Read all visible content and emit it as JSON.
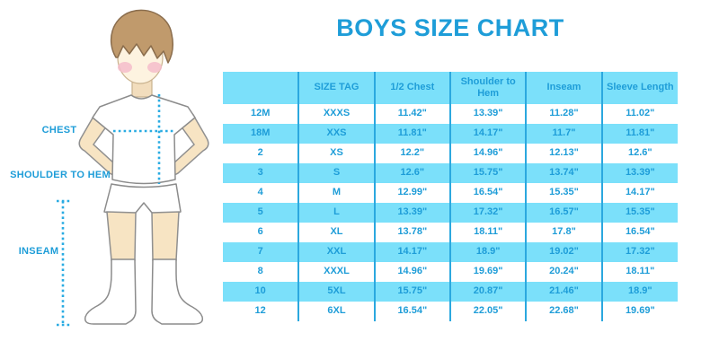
{
  "title": "BOYS SIZE CHART",
  "colors": {
    "primary_blue": "#1E9DD8",
    "header_row_blue": "#7BE0FA",
    "divider_blue": "#2BA8DF",
    "dotted_line_blue": "#29ABE2"
  },
  "diagram": {
    "chest_label": "CHEST",
    "shoulder_label": "SHOULDER TO HEM",
    "inseam_label": "INSEAM"
  },
  "chart_data": {
    "type": "table",
    "title": "BOYS SIZE CHART",
    "columns": [
      "",
      "SIZE TAG",
      "1/2 Chest",
      "Shoulder to Hem",
      "Inseam",
      "Sleeve Length"
    ],
    "rows": [
      [
        "12M",
        "XXXS",
        "11.42\"",
        "13.39\"",
        "11.28\"",
        "11.02\""
      ],
      [
        "18M",
        "XXS",
        "11.81\"",
        "14.17\"",
        "11.7\"",
        "11.81\""
      ],
      [
        "2",
        "XS",
        "12.2\"",
        "14.96\"",
        "12.13\"",
        "12.6\""
      ],
      [
        "3",
        "S",
        "12.6\"",
        "15.75\"",
        "13.74\"",
        "13.39\""
      ],
      [
        "4",
        "M",
        "12.99\"",
        "16.54\"",
        "15.35\"",
        "14.17\""
      ],
      [
        "5",
        "L",
        "13.39\"",
        "17.32\"",
        "16.57\"",
        "15.35\""
      ],
      [
        "6",
        "XL",
        "13.78\"",
        "18.11\"",
        "17.8\"",
        "16.54\""
      ],
      [
        "7",
        "XXL",
        "14.17\"",
        "18.9\"",
        "19.02\"",
        "17.32\""
      ],
      [
        "8",
        "XXXL",
        "14.96\"",
        "19.69\"",
        "20.24\"",
        "18.11\""
      ],
      [
        "10",
        "5XL",
        "15.75\"",
        "20.87\"",
        "21.46\"",
        "18.9\""
      ],
      [
        "12",
        "6XL",
        "16.54\"",
        "22.05\"",
        "22.68\"",
        "19.69\""
      ]
    ]
  }
}
